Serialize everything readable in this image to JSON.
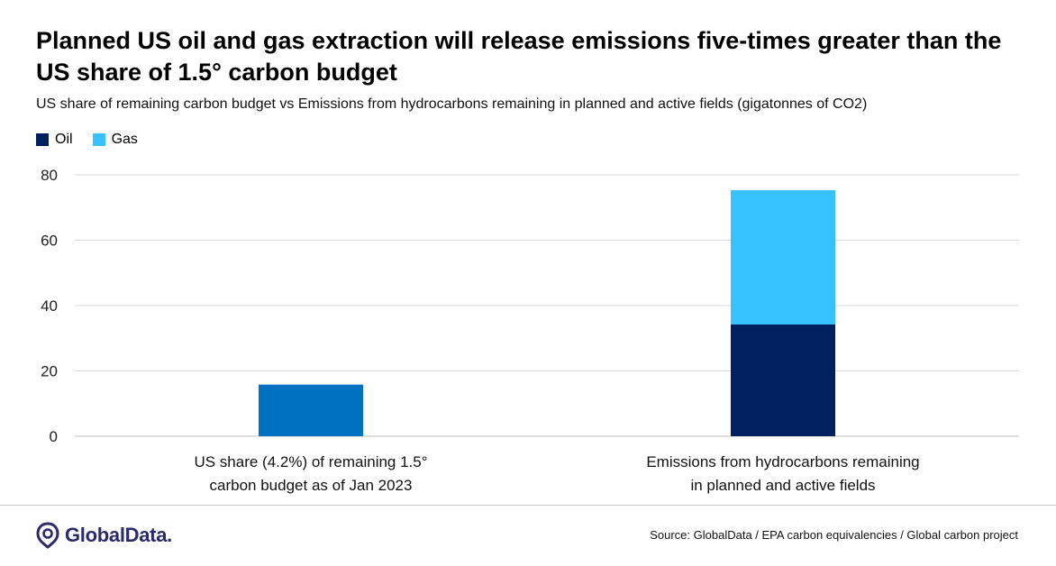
{
  "header": {
    "title": "Planned US oil and gas extraction will release emissions five-times greater than the US share of 1.5° carbon budget",
    "subtitle": "US share of remaining carbon budget vs Emissions from hydrocarbons remaining in planned and active fields (gigatonnes of CO2)"
  },
  "legend": [
    {
      "label": "Oil",
      "color": "#002060"
    },
    {
      "label": "Gas",
      "color": "#38c1ff"
    }
  ],
  "chart_data": {
    "type": "bar",
    "stacked": true,
    "categories": [
      "US share (4.2%) of remaining 1.5° carbon budget as of Jan 2023",
      "Emissions from hydrocarbons remaining in planned and active fields"
    ],
    "category_lines": [
      [
        "US share (4.2%) of remaining 1.5°",
        "carbon budget as of Jan 2023"
      ],
      [
        "Emissions from hydrocarbons remaining",
        "in planned and active fields"
      ]
    ],
    "series": [
      {
        "name": "",
        "values": [
          15.8,
          null
        ],
        "color": "#0070c0"
      },
      {
        "name": "Oil",
        "values": [
          null,
          34.2
        ],
        "color": "#002060"
      },
      {
        "name": "Gas",
        "values": [
          null,
          41.1
        ],
        "color": "#38c1ff"
      }
    ],
    "ylim": [
      0,
      80
    ],
    "yticks": [
      "0",
      "20",
      "40",
      "60",
      "80"
    ],
    "ytick_values": [
      0,
      20,
      40,
      60,
      80
    ],
    "grid": true,
    "legend_position": "top-left"
  },
  "footer": {
    "brand": "GlobalData.",
    "source": "Source: GlobalData / EPA carbon equivalencies  / Global carbon project"
  },
  "colors": {
    "grid": "#d9d9d9",
    "axis": "#bfbfbf",
    "brand": "#2b2a6b"
  }
}
